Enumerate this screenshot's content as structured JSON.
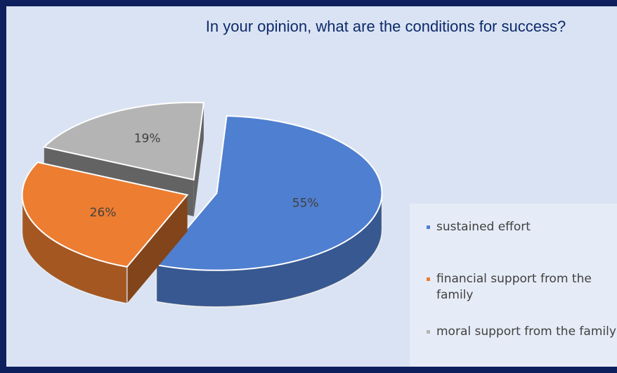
{
  "chart_data": {
    "type": "pie",
    "title": "In your opinion, what are the conditions for success?",
    "categories": [
      "sustained effort",
      "financial support from the family",
      "moral support from the family"
    ],
    "values": [
      55,
      26,
      19
    ],
    "value_labels": [
      "55%",
      "26%",
      "19%"
    ],
    "colors": [
      "#4f7fd0",
      "#ed7d31",
      "#b4b4b4"
    ],
    "legend": "right"
  }
}
